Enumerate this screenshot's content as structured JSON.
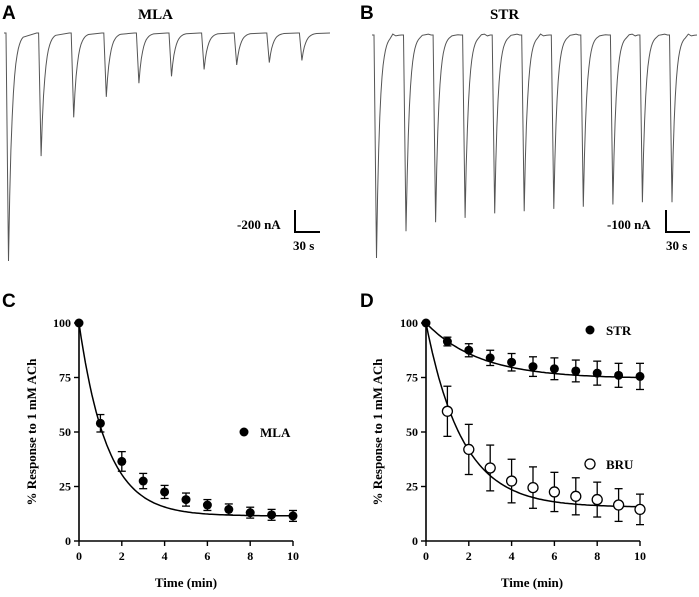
{
  "panels": {
    "A": {
      "letter": "A",
      "title": "MLA",
      "scale_current": "-200 nA",
      "scale_time": "30 s",
      "peak_depths_percent": [
        100,
        54,
        37,
        28,
        22,
        19,
        16,
        14,
        13,
        12
      ]
    },
    "B": {
      "letter": "B",
      "title": "STR",
      "scale_current": "-100 nA",
      "scale_time": "30 s",
      "peak_depths_percent": [
        100,
        88,
        84,
        82,
        80,
        79,
        78,
        77,
        76,
        75,
        75
      ]
    },
    "C": {
      "letter": "C"
    },
    "D": {
      "letter": "D"
    }
  },
  "chart_data": [
    {
      "panel": "C",
      "type": "scatter",
      "xlabel": "Time (min)",
      "ylabel": "% Response to 1 mM  ACh",
      "xlim": [
        0,
        10
      ],
      "ylim": [
        0,
        100
      ],
      "xticks": [
        "0",
        "2",
        "4",
        "6",
        "8",
        "10"
      ],
      "yticks": [
        "0",
        "25",
        "50",
        "75",
        "100"
      ],
      "series": [
        {
          "name": "MLA",
          "marker": "filled",
          "color": "#000000",
          "x": [
            0,
            1,
            2,
            3,
            4,
            5,
            6,
            7,
            8,
            9,
            10
          ],
          "y": [
            100,
            54,
            36.5,
            27.5,
            22.5,
            19,
            16.5,
            14.5,
            13,
            12,
            11.5
          ],
          "err": [
            0,
            4,
            4.5,
            3.5,
            3,
            3,
            2.5,
            2.5,
            2.5,
            2.5,
            2.5
          ],
          "fit": {
            "plateau": 11.5,
            "tau": 1.3
          }
        }
      ]
    },
    {
      "panel": "D",
      "type": "scatter",
      "xlabel": "Time (min)",
      "ylabel": "% Response to 1 mM  ACh",
      "xlim": [
        0,
        10
      ],
      "ylim": [
        0,
        100
      ],
      "xticks": [
        "0",
        "2",
        "4",
        "6",
        "8",
        "10"
      ],
      "yticks": [
        "0",
        "25",
        "50",
        "75",
        "100"
      ],
      "series": [
        {
          "name": "STR",
          "marker": "filled",
          "color": "#000000",
          "x": [
            0,
            1,
            2,
            3,
            4,
            5,
            6,
            7,
            8,
            9,
            10
          ],
          "y": [
            100,
            91.5,
            87.5,
            84,
            82,
            80,
            79,
            78,
            77,
            76,
            75.5
          ],
          "err": [
            0,
            2,
            3,
            3.5,
            4,
            4.5,
            5,
            5,
            5.5,
            5.5,
            6
          ],
          "fit": {
            "plateau": 74.5,
            "tau": 2.5
          }
        },
        {
          "name": "BRU",
          "marker": "open",
          "color": "#000000",
          "x": [
            1,
            2,
            3,
            4,
            5,
            6,
            7,
            8,
            9,
            10
          ],
          "y": [
            59.5,
            42,
            33.5,
            27.5,
            24.5,
            22.5,
            20.5,
            19,
            16.5,
            14.5
          ],
          "err": [
            11.5,
            11.5,
            10.5,
            10,
            9.5,
            9,
            8.5,
            8,
            7.5,
            7
          ],
          "fit": {
            "plateau": 15.5,
            "tau": 1.7
          }
        }
      ]
    }
  ]
}
